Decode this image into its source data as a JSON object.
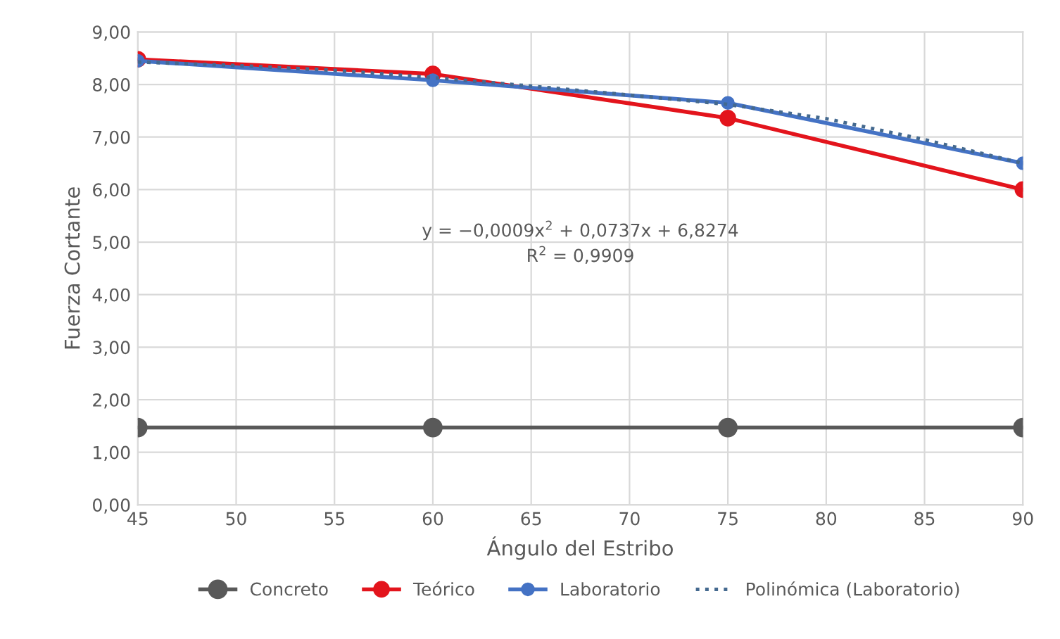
{
  "chart_data": {
    "type": "line",
    "xlabel": "Ángulo del Estribo",
    "ylabel": "Fuerza Cortante",
    "x": [
      45,
      60,
      75,
      90
    ],
    "series": [
      {
        "name": "Concreto",
        "color": "#595959",
        "values": [
          1.47,
          1.47,
          1.47,
          1.47
        ],
        "marker": "circle",
        "line_style": "solid"
      },
      {
        "name": "Teórico",
        "color": "#e3141c",
        "values": [
          8.48,
          8.2,
          7.36,
          6.0
        ],
        "marker": "circle",
        "line_style": "solid"
      },
      {
        "name": "Laboratorio",
        "color": "#4472c4",
        "values": [
          8.45,
          8.08,
          7.65,
          6.5
        ],
        "marker": "circle",
        "line_style": "solid"
      },
      {
        "name": "Polinómica (Laboratorio)",
        "color": "#44698f",
        "x": [
          45,
          50,
          55,
          60,
          65,
          70,
          75,
          80,
          85,
          90
        ],
        "values": [
          8.43,
          8.36,
          8.27,
          8.13,
          7.97,
          7.8,
          7.62,
          7.35,
          6.95,
          6.5
        ],
        "marker": "none",
        "line_style": "dotted"
      }
    ],
    "xlim": [
      45,
      90
    ],
    "xticks": [
      45,
      50,
      55,
      60,
      65,
      70,
      75,
      80,
      85,
      90
    ],
    "ylim": [
      0,
      9
    ],
    "yticks": [
      {
        "value": 0,
        "label": "0,00"
      },
      {
        "value": 1,
        "label": "1,00"
      },
      {
        "value": 2,
        "label": "2,00"
      },
      {
        "value": 3,
        "label": "3,00"
      },
      {
        "value": 4,
        "label": "4,00"
      },
      {
        "value": 5,
        "label": "5,00"
      },
      {
        "value": 6,
        "label": "6,00"
      },
      {
        "value": 7,
        "label": "7,00"
      },
      {
        "value": 8,
        "label": "8,00"
      },
      {
        "value": 9,
        "label": "9,00"
      }
    ],
    "annotations": [
      "y = −0,0009x$^{2}$ + 0,0737x + 6,8274",
      "R$^{2}$ = 0,9909"
    ],
    "grid": true,
    "legend": "bottom"
  }
}
